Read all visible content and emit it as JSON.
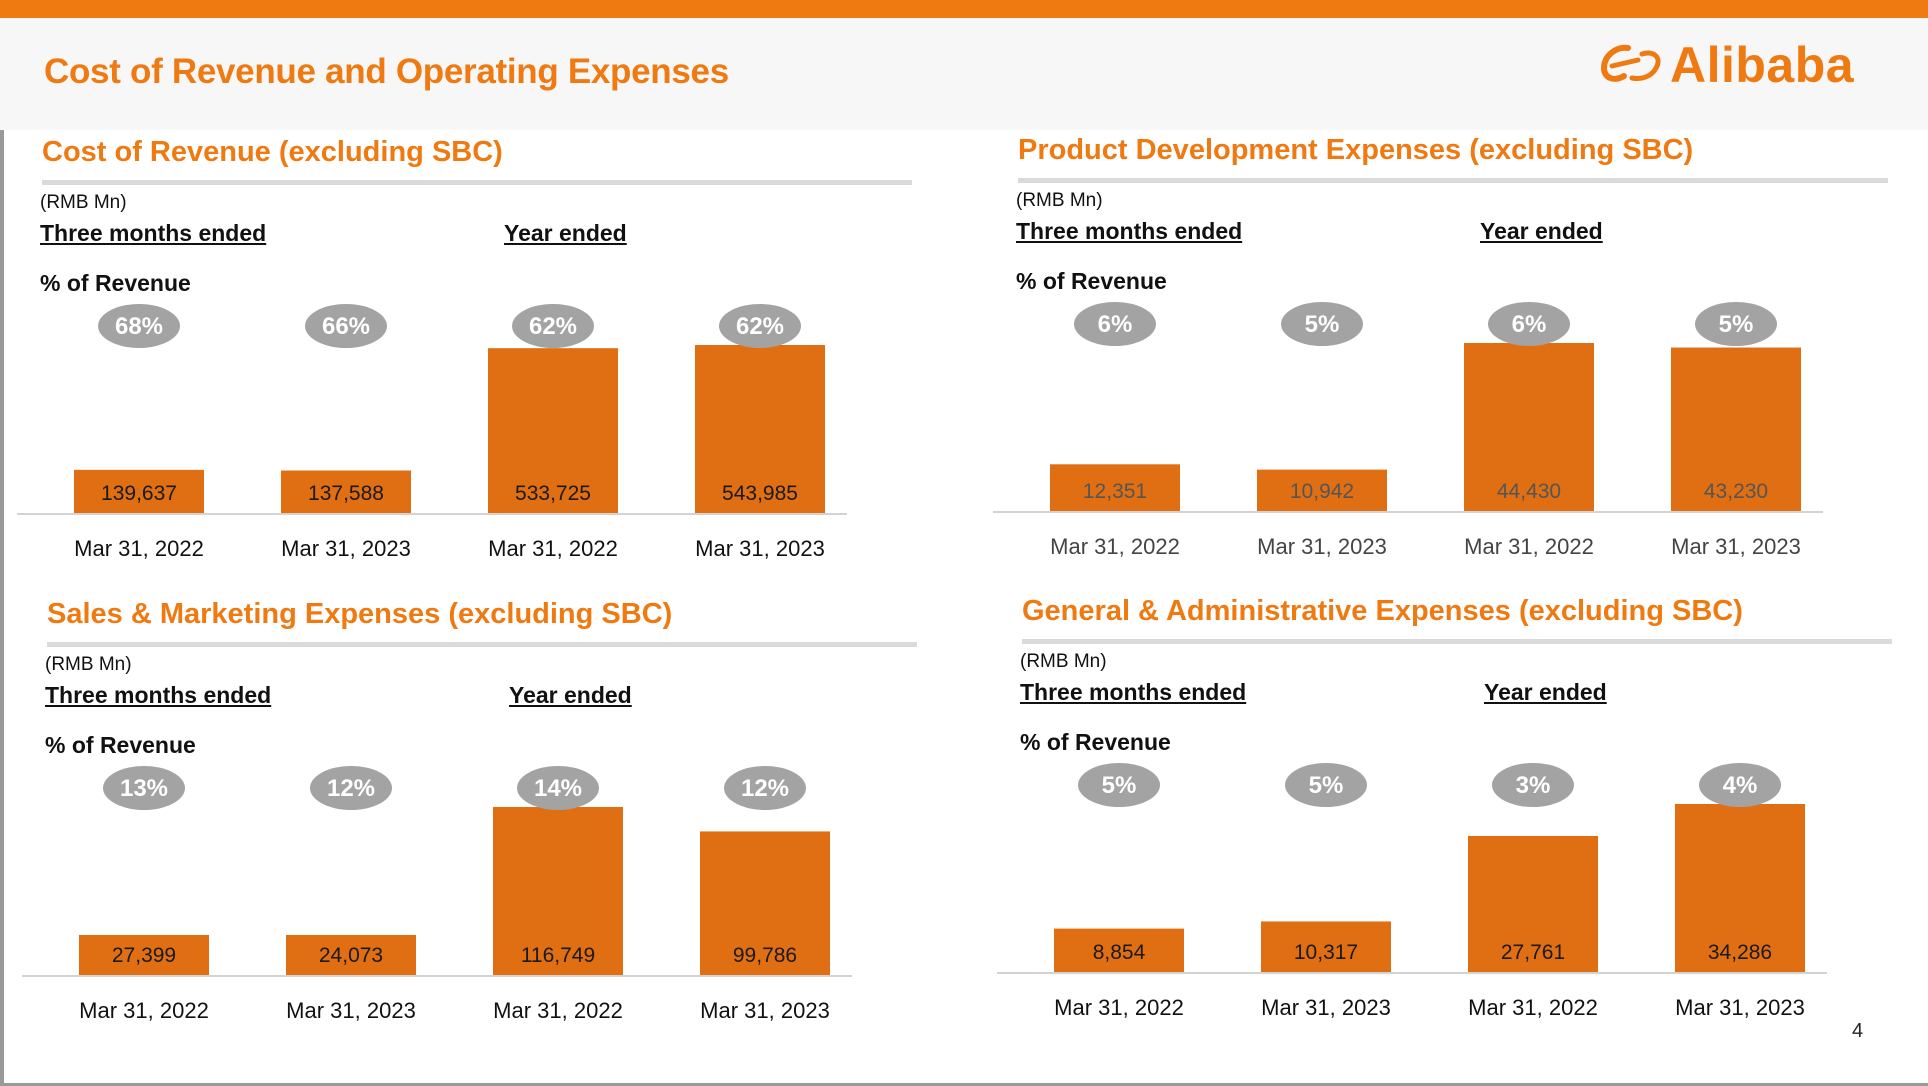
{
  "slide": {
    "title": "Cost of Revenue and Operating Expenses",
    "logo_text": "Alibaba",
    "page_number": "4",
    "colors": {
      "accent": "#F07A12",
      "bar": "#E06E12",
      "badge": "#A3A3A3",
      "rule": "#DADADA"
    }
  },
  "panels": [
    {
      "title": "Cost of Revenue (excluding SBC)",
      "unit": "(RMB Mn)",
      "three_months_label": "Three months ended",
      "year_label": "Year ended",
      "pct_label": "% of Revenue"
    },
    {
      "title": "Product Development Expenses (excluding SBC)",
      "unit": "(RMB Mn)",
      "three_months_label": "Three months ended",
      "year_label": "Year ended",
      "pct_label": "% of Revenue"
    },
    {
      "title": "Sales & Marketing Expenses (excluding SBC)",
      "unit": "(RMB Mn)",
      "three_months_label": "Three months ended",
      "year_label": "Year ended",
      "pct_label": "% of Revenue"
    },
    {
      "title": "General & Administrative Expenses (excluding SBC)",
      "unit": "(RMB Mn)",
      "three_months_label": "Three months ended",
      "year_label": "Year ended",
      "pct_label": "% of Revenue"
    }
  ],
  "chart_data": [
    {
      "type": "bar",
      "title": "Cost of Revenue (excluding SBC)",
      "unit": "RMB Mn",
      "categories": [
        "Mar 31, 2022",
        "Mar 31, 2023",
        "Mar 31, 2022",
        "Mar 31, 2023"
      ],
      "groups": [
        "Three months ended",
        "Three months ended",
        "Year ended",
        "Year ended"
      ],
      "values": [
        139637,
        137588,
        533725,
        543985
      ],
      "value_labels": [
        "139,637",
        "137,588",
        "533,725",
        "543,985"
      ],
      "pct_of_revenue": [
        "68%",
        "66%",
        "62%",
        "62%"
      ]
    },
    {
      "type": "bar",
      "title": "Product Development Expenses (excluding SBC)",
      "unit": "RMB Mn",
      "categories": [
        "Mar 31, 2022",
        "Mar 31, 2023",
        "Mar 31, 2022",
        "Mar 31, 2023"
      ],
      "groups": [
        "Three months ended",
        "Three months ended",
        "Year ended",
        "Year ended"
      ],
      "values": [
        12351,
        10942,
        44430,
        43230
      ],
      "value_labels": [
        "12,351",
        "10,942",
        "44,430",
        "43,230"
      ],
      "pct_of_revenue": [
        "6%",
        "5%",
        "6%",
        "5%"
      ]
    },
    {
      "type": "bar",
      "title": "Sales & Marketing Expenses (excluding SBC)",
      "unit": "RMB Mn",
      "categories": [
        "Mar 31, 2022",
        "Mar 31, 2023",
        "Mar 31, 2022",
        "Mar 31, 2023"
      ],
      "groups": [
        "Three months ended",
        "Three months ended",
        "Year ended",
        "Year ended"
      ],
      "values": [
        27399,
        24073,
        116749,
        99786
      ],
      "value_labels": [
        "27,399",
        "24,073",
        "116,749",
        "99,786"
      ],
      "pct_of_revenue": [
        "13%",
        "12%",
        "14%",
        "12%"
      ]
    },
    {
      "type": "bar",
      "title": "General & Administrative Expenses (excluding SBC)",
      "unit": "RMB Mn",
      "categories": [
        "Mar 31, 2022",
        "Mar 31, 2023",
        "Mar 31, 2022",
        "Mar 31, 2023"
      ],
      "groups": [
        "Three months ended",
        "Three months ended",
        "Year ended",
        "Year ended"
      ],
      "values": [
        8854,
        10317,
        27761,
        34286
      ],
      "value_labels": [
        "8,854",
        "10,317",
        "27,761",
        "34,286"
      ],
      "pct_of_revenue": [
        "5%",
        "5%",
        "3%",
        "4%"
      ]
    }
  ]
}
